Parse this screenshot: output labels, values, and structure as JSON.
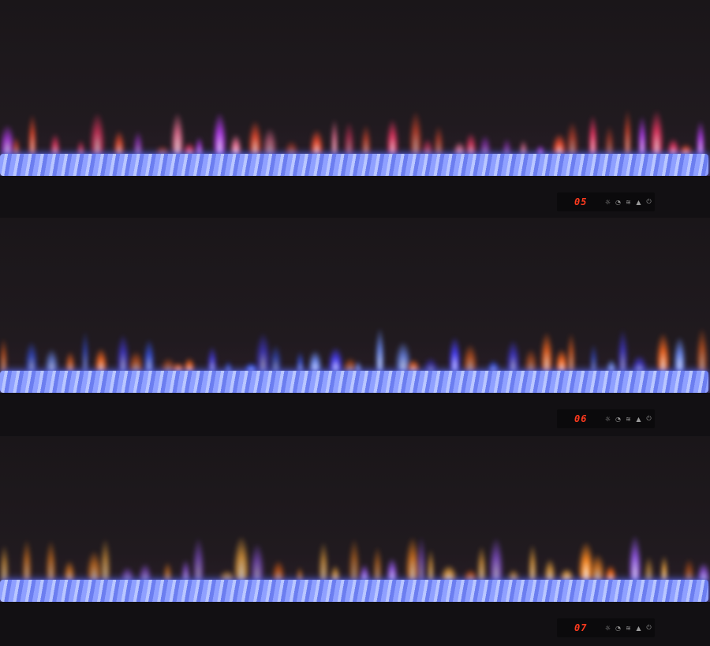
{
  "panels": [
    {
      "display": "05",
      "flame_colors": [
        "#ff3a6a",
        "#ff7aa0",
        "#c040ff",
        "#ff5030"
      ]
    },
    {
      "display": "06",
      "flame_colors": [
        "#3a5aff",
        "#7090ff",
        "#ff6a20",
        "#4a40ff"
      ]
    },
    {
      "display": "07",
      "flame_colors": [
        "#ff8a20",
        "#ffb040",
        "#ff6a10",
        "#a060ff"
      ]
    }
  ],
  "control_icons": [
    "brightness-icon",
    "timer-icon",
    "heat-icon",
    "flame-icon",
    "power-icon"
  ],
  "colors": {
    "ember_bed": "#8fa0ff",
    "display": "#ff3a1e"
  }
}
